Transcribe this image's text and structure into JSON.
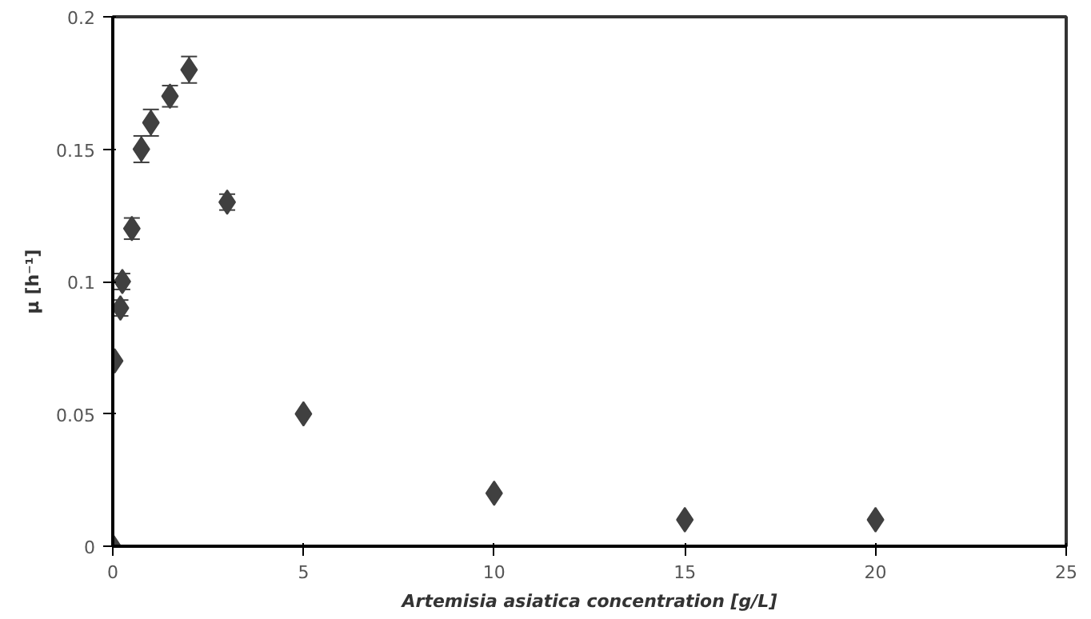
{
  "chart_data": {
    "type": "scatter",
    "xlabel": "Artemisia asiatica concentration [g/L]",
    "ylabel": "μ [h⁻¹]",
    "x": [
      0,
      0.05,
      0.2,
      0.25,
      0.5,
      0.75,
      1,
      1.5,
      2,
      3,
      5,
      10,
      15,
      20
    ],
    "series": [
      {
        "color": "#404040",
        "values": [
          0,
          0.07,
          0.09,
          0.1,
          0.12,
          0.15,
          0.16,
          0.17,
          0.18,
          0.13,
          0.05,
          0.02,
          0.01,
          0.01
        ],
        "errors": [
          null,
          null,
          0.003,
          0.003,
          0.004,
          0.005,
          0.005,
          0.004,
          0.005,
          0.003,
          null,
          null,
          null,
          null
        ]
      }
    ],
    "xlim": [
      0,
      25
    ],
    "xticks": [
      0,
      5,
      10,
      15,
      20,
      25
    ],
    "ylim": [
      0,
      0.2
    ],
    "yticks": [
      0,
      0.05,
      0.1,
      0.15,
      0.2
    ],
    "grid": false,
    "marker": "diamond"
  }
}
